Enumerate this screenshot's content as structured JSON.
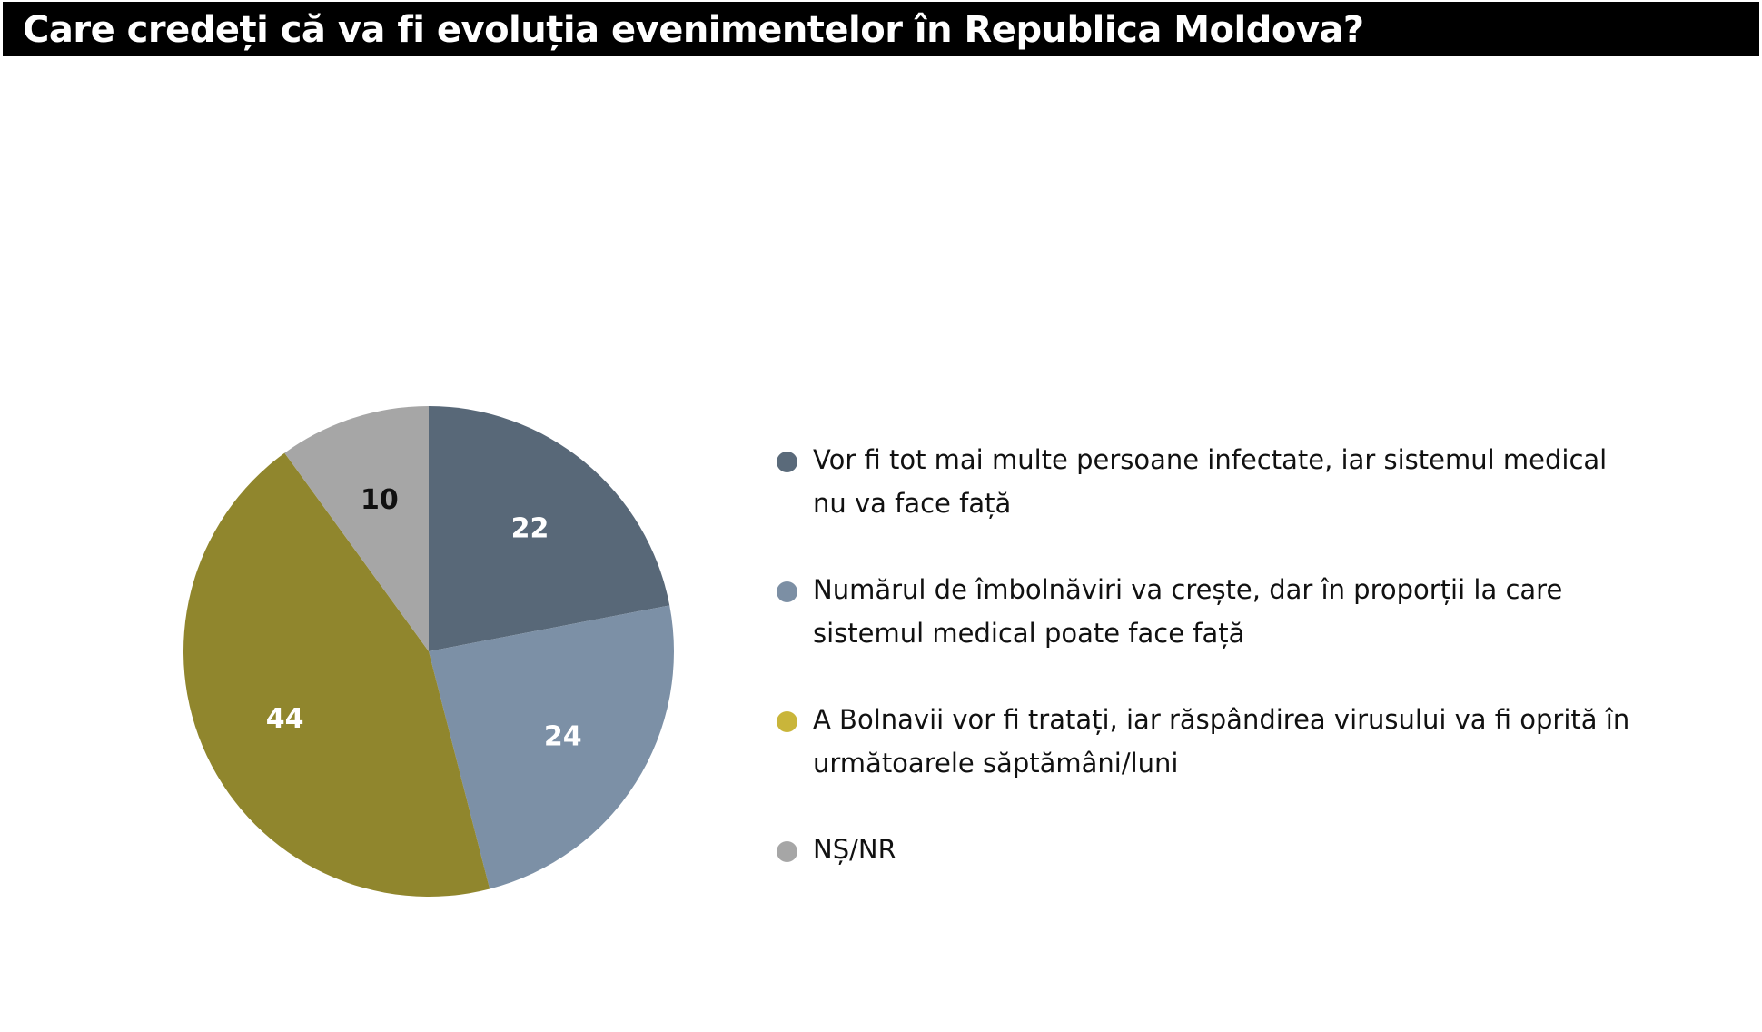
{
  "page": {
    "title": "Care credeți că va fi evoluția evenimentelor în Republica Moldova?"
  },
  "chart_data": {
    "type": "pie",
    "title": "Care credeți că va fi evoluția evenimentelor în Republica Moldova?",
    "slices": [
      {
        "label": "Vor fi tot mai multe persoane infectate, iar sistemul medical nu va face față",
        "value": 22,
        "color": "#586878",
        "label_color": "#ffffff"
      },
      {
        "label": "Numărul de îmbolnăviri va crește, dar în proporții la care sistemul medical poate face față",
        "value": 24,
        "color": "#7c90a6",
        "label_color": "#ffffff"
      },
      {
        "label": "A Bolnavii vor fi tratați, iar răspândirea virusului va fi oprită în următoarele săptămâni/luni",
        "value": 44,
        "color": "#90862d",
        "label_color": "#ffffff"
      },
      {
        "label": "NȘ/NR",
        "value": 10,
        "color": "#a6a6a6",
        "label_color": "#111111"
      }
    ],
    "legend_position": "right"
  },
  "legend": {
    "dot_colors": [
      "#5a6a7a",
      "#7c8fa4",
      "#c9b53a",
      "#a6a6a6"
    ],
    "items": [
      "Vor fi tot mai multe persoane infectate, iar sistemul medical nu va face față",
      "Numărul de îmbolnăviri va crește, dar în proporții la care sistemul medical poate face față",
      "A Bolnavii vor fi tratați, iar răspândirea virusului va fi oprită în următoarele săptămâni/luni",
      "NȘ/NR"
    ]
  }
}
